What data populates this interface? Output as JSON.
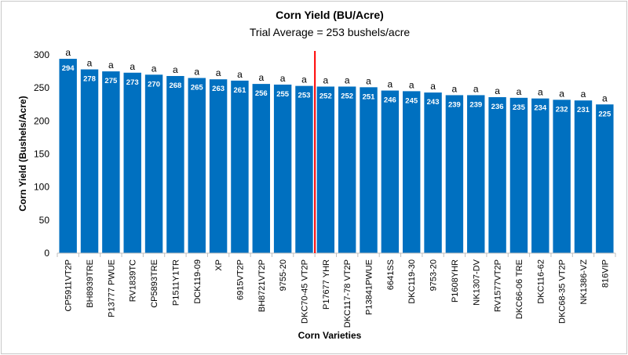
{
  "chart_data": {
    "type": "bar",
    "title": "Corn Yield (BU/Acre)",
    "subtitle": "Trial Average = 253 bushels/acre",
    "xlabel": "Corn Varieties",
    "ylabel": "Corn Yield (Bushels/Acre)",
    "ylim": [
      0,
      300
    ],
    "yticks": [
      0,
      50,
      100,
      150,
      200,
      250,
      300
    ],
    "grid": false,
    "bar_color": "#0070C0",
    "average_line": {
      "value": 253,
      "color": "#FF0000",
      "after_category": "DKC70-45 VT2P"
    },
    "categories": [
      "CP5911VT2P",
      "BH8939TRE",
      "P13777 PWUE",
      "RV1839TC",
      "CP5893TRE",
      "P1511Y1TR",
      "DCK119-09",
      "XP",
      "6915VT2P",
      "BH8721VT2P",
      "9755-20",
      "DKC70-45 VT2P",
      "P17677 YHR",
      "DKC117-78 VT2P",
      "P13841PWUE",
      "6641SS",
      "DKC119-30",
      "9753-20",
      "P1608YHR",
      "NK1307-DV",
      "RV1577VT2P",
      "DKC66-06 TRE",
      "DKC116-62",
      "DKC68-35 VT2P",
      "NK1386-VZ",
      "816VIP"
    ],
    "values": [
      294,
      278,
      275,
      273,
      270,
      268,
      265,
      263,
      261,
      256,
      255,
      253,
      252,
      252,
      251,
      246,
      245,
      243,
      239,
      239,
      236,
      235,
      234,
      232,
      231,
      225
    ],
    "significance_letters": [
      "a",
      "a",
      "a",
      "a",
      "a",
      "a",
      "a",
      "a",
      "a",
      "a",
      "a",
      "a",
      "a",
      "a",
      "a",
      "a",
      "a",
      "a",
      "a",
      "a",
      "a",
      "a",
      "a",
      "a",
      "a",
      "a"
    ]
  }
}
